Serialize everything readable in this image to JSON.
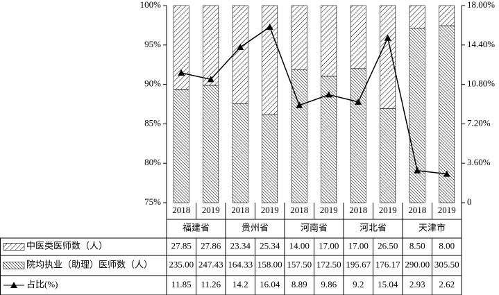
{
  "chart_data": {
    "type": "stacked_percent_bar_line",
    "categories": [
      "2018",
      "2019",
      "2018",
      "2019",
      "2018",
      "2019",
      "2018",
      "2019",
      "2018",
      "2019"
    ],
    "groups": [
      "福建省",
      "贵州省",
      "河南省",
      "河北省",
      "天津市"
    ],
    "series": [
      {
        "name": "中医类医师数（人）",
        "color": "#000000",
        "pattern": "hatch",
        "values": [
          27.85,
          27.86,
          23.34,
          25.34,
          14.0,
          17.0,
          17.0,
          26.5,
          8.5,
          8.0
        ],
        "value_labels": [
          "27.85",
          "27.86",
          "23.34",
          "25.34",
          "14.00",
          "17.00",
          "17.00",
          "26.50",
          "8.50",
          "8.00"
        ]
      },
      {
        "name": "院均执业（助理）医师数（人）",
        "color": "#000000",
        "pattern": "dots",
        "values": [
          235.0,
          247.43,
          164.33,
          158.0,
          157.5,
          172.5,
          195.67,
          176.17,
          290.0,
          305.5
        ],
        "value_labels": [
          "235.00",
          "247.43",
          "164.33",
          "158.00",
          "157.50",
          "172.50",
          "195.67",
          "176.17",
          "290.00",
          "305.50"
        ]
      },
      {
        "name": "占比(%)",
        "color": "#000000",
        "axis": "y2",
        "marker": "triangle",
        "values": [
          11.85,
          11.26,
          14.2,
          16.04,
          8.89,
          9.86,
          9.2,
          15.04,
          2.93,
          2.62
        ]
      }
    ],
    "ylim": [
      75,
      100
    ],
    "yticks": [
      {
        "value": 75,
        "label": "75%"
      },
      {
        "value": 80,
        "label": "80%"
      },
      {
        "value": 85,
        "label": "85%"
      },
      {
        "value": 90,
        "label": "90%"
      },
      {
        "value": 95,
        "label": "95%"
      },
      {
        "value": 100,
        "label": "100%"
      }
    ],
    "y2lim": [
      0,
      18
    ],
    "y2ticks": [
      0,
      {
        "value": 3.6,
        "label": "3.60%"
      },
      {
        "value": 7.2,
        "label": "7.20%"
      },
      {
        "value": 10.8,
        "label": "10.80%"
      },
      {
        "value": 14.4,
        "label": "14.40%"
      },
      {
        "value": 18,
        "label": "18.00%"
      }
    ]
  }
}
